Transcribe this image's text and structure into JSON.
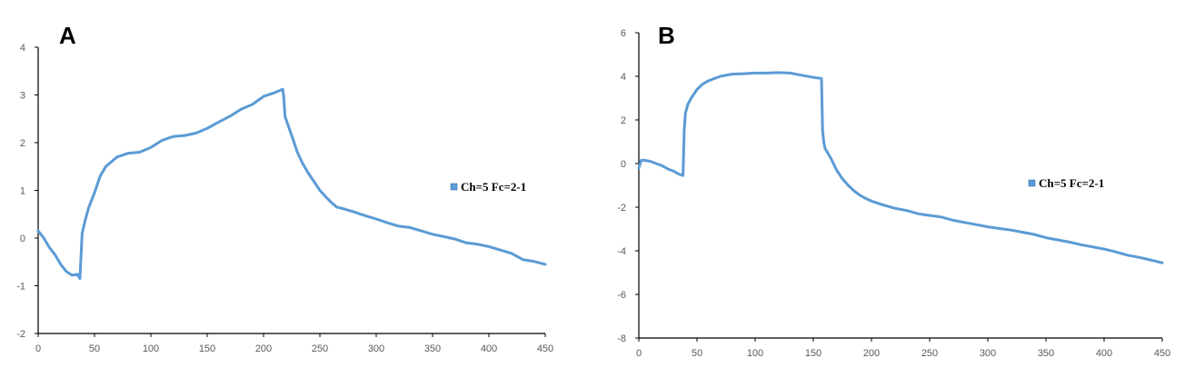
{
  "chart_data": [
    {
      "panel_label": "A",
      "type": "line",
      "xlim": [
        0,
        450
      ],
      "ylim": [
        -2,
        4
      ],
      "xticks": [
        0,
        50,
        100,
        150,
        200,
        250,
        300,
        350,
        400,
        450
      ],
      "yticks": [
        -2,
        -1,
        0,
        1,
        2,
        3,
        4
      ],
      "grid": false,
      "legend_position": "right",
      "series_color": "#5b9bd5",
      "series": [
        {
          "name": "Ch=5 Fc=2-1",
          "points": [
            [
              0,
              0.15
            ],
            [
              5,
              0.0
            ],
            [
              10,
              -0.2
            ],
            [
              15,
              -0.35
            ],
            [
              20,
              -0.55
            ],
            [
              25,
              -0.7
            ],
            [
              30,
              -0.78
            ],
            [
              35,
              -0.76
            ],
            [
              37,
              -0.85
            ],
            [
              38,
              -0.4
            ],
            [
              39,
              0.1
            ],
            [
              42,
              0.4
            ],
            [
              45,
              0.65
            ],
            [
              50,
              0.95
            ],
            [
              55,
              1.3
            ],
            [
              60,
              1.5
            ],
            [
              65,
              1.6
            ],
            [
              70,
              1.7
            ],
            [
              80,
              1.78
            ],
            [
              90,
              1.8
            ],
            [
              100,
              1.9
            ],
            [
              110,
              2.05
            ],
            [
              120,
              2.13
            ],
            [
              130,
              2.15
            ],
            [
              140,
              2.2
            ],
            [
              150,
              2.3
            ],
            [
              160,
              2.43
            ],
            [
              170,
              2.55
            ],
            [
              180,
              2.7
            ],
            [
              190,
              2.8
            ],
            [
              200,
              2.97
            ],
            [
              210,
              3.05
            ],
            [
              217,
              3.12
            ],
            [
              218,
              2.95
            ],
            [
              219,
              2.55
            ],
            [
              222,
              2.35
            ],
            [
              225,
              2.15
            ],
            [
              230,
              1.8
            ],
            [
              235,
              1.55
            ],
            [
              240,
              1.35
            ],
            [
              245,
              1.18
            ],
            [
              250,
              1.0
            ],
            [
              255,
              0.87
            ],
            [
              260,
              0.75
            ],
            [
              265,
              0.65
            ],
            [
              270,
              0.62
            ],
            [
              280,
              0.55
            ],
            [
              290,
              0.47
            ],
            [
              300,
              0.4
            ],
            [
              310,
              0.32
            ],
            [
              320,
              0.25
            ],
            [
              330,
              0.22
            ],
            [
              340,
              0.15
            ],
            [
              350,
              0.08
            ],
            [
              360,
              0.03
            ],
            [
              370,
              -0.02
            ],
            [
              380,
              -0.1
            ],
            [
              390,
              -0.13
            ],
            [
              400,
              -0.18
            ],
            [
              410,
              -0.25
            ],
            [
              420,
              -0.32
            ],
            [
              430,
              -0.45
            ],
            [
              440,
              -0.49
            ],
            [
              450,
              -0.55
            ]
          ]
        }
      ]
    },
    {
      "panel_label": "B",
      "type": "line",
      "xlim": [
        0,
        450
      ],
      "ylim": [
        -8,
        6
      ],
      "xticks": [
        0,
        50,
        100,
        150,
        200,
        250,
        300,
        350,
        400,
        450
      ],
      "yticks": [
        -8,
        -6,
        -4,
        -2,
        0,
        2,
        4,
        6
      ],
      "grid": false,
      "legend_position": "right",
      "series_color": "#5b9bd5",
      "series": [
        {
          "name": "Ch=5 Fc=2-1",
          "points": [
            [
              0,
              -0.2
            ],
            [
              2,
              0.15
            ],
            [
              5,
              0.15
            ],
            [
              10,
              0.1
            ],
            [
              15,
              0.0
            ],
            [
              20,
              -0.1
            ],
            [
              25,
              -0.25
            ],
            [
              30,
              -0.35
            ],
            [
              35,
              -0.5
            ],
            [
              38,
              -0.55
            ],
            [
              39,
              1.5
            ],
            [
              40,
              2.3
            ],
            [
              42,
              2.7
            ],
            [
              45,
              3.0
            ],
            [
              50,
              3.4
            ],
            [
              55,
              3.65
            ],
            [
              60,
              3.8
            ],
            [
              70,
              4.0
            ],
            [
              80,
              4.1
            ],
            [
              90,
              4.12
            ],
            [
              100,
              4.15
            ],
            [
              110,
              4.15
            ],
            [
              120,
              4.17
            ],
            [
              130,
              4.15
            ],
            [
              140,
              4.05
            ],
            [
              150,
              3.95
            ],
            [
              157,
              3.9
            ],
            [
              158,
              1.5
            ],
            [
              159,
              1.0
            ],
            [
              160,
              0.7
            ],
            [
              165,
              0.25
            ],
            [
              170,
              -0.3
            ],
            [
              175,
              -0.7
            ],
            [
              180,
              -1.0
            ],
            [
              185,
              -1.25
            ],
            [
              190,
              -1.45
            ],
            [
              195,
              -1.6
            ],
            [
              200,
              -1.72
            ],
            [
              210,
              -1.9
            ],
            [
              220,
              -2.05
            ],
            [
              230,
              -2.15
            ],
            [
              240,
              -2.3
            ],
            [
              250,
              -2.38
            ],
            [
              260,
              -2.45
            ],
            [
              270,
              -2.6
            ],
            [
              280,
              -2.7
            ],
            [
              290,
              -2.8
            ],
            [
              300,
              -2.9
            ],
            [
              310,
              -2.98
            ],
            [
              320,
              -3.05
            ],
            [
              330,
              -3.15
            ],
            [
              340,
              -3.25
            ],
            [
              350,
              -3.4
            ],
            [
              360,
              -3.5
            ],
            [
              370,
              -3.6
            ],
            [
              380,
              -3.72
            ],
            [
              390,
              -3.82
            ],
            [
              400,
              -3.92
            ],
            [
              410,
              -4.05
            ],
            [
              420,
              -4.2
            ],
            [
              430,
              -4.3
            ],
            [
              440,
              -4.42
            ],
            [
              450,
              -4.55
            ]
          ]
        }
      ]
    }
  ]
}
